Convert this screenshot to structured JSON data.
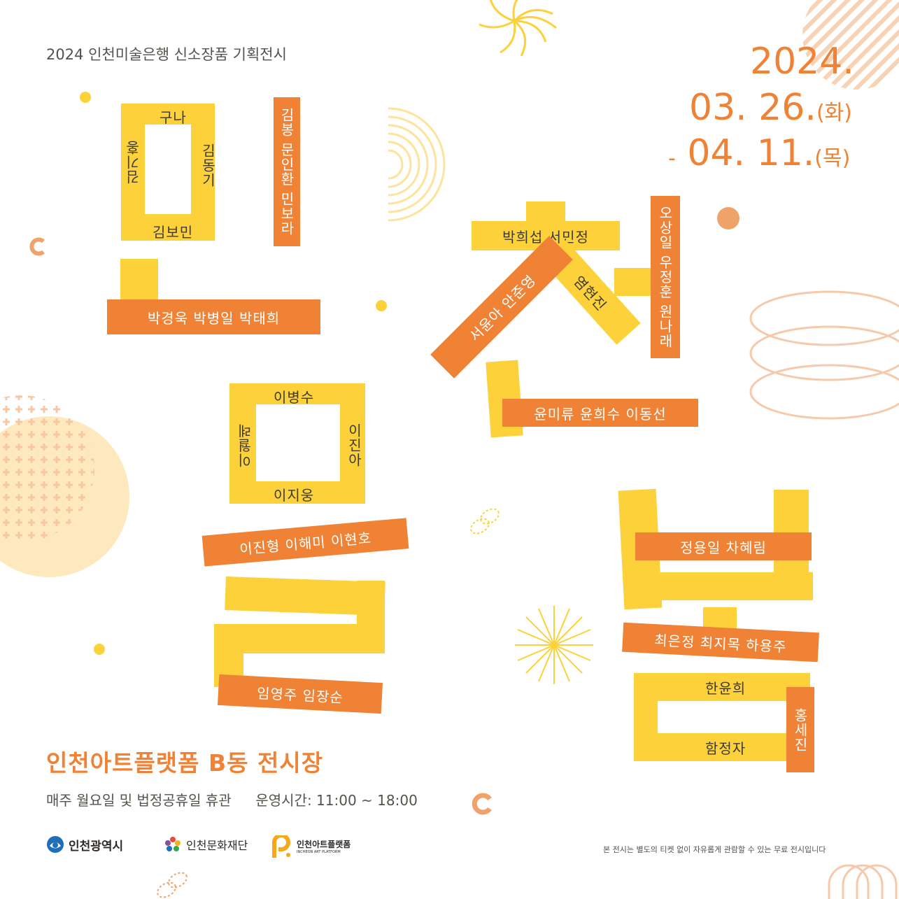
{
  "header": {
    "subtitle": "2024 인천미술은행 신소장품 기획전시",
    "date_year": "2024.",
    "date_start": "03. 26.",
    "date_start_day": "(화)",
    "date_dash": "-",
    "date_end": "04. 11.",
    "date_end_day": "(목)"
  },
  "artists": {
    "g1_top": "구나",
    "g1_left": "김기홍",
    "g1_right": "김동기",
    "g1_bottom": "김보민",
    "v1": "김봉 문인환 민보라",
    "h1": "박경욱 박병일 박태희",
    "g2_top": "이병수",
    "g2_left": "이월례",
    "g2_right": "이진아",
    "g2_bottom": "이지웅",
    "h2": "이진형 이해미 이현호",
    "h3": "임영주 임장순",
    "c_top": "박희섭 서민정",
    "c_diag_left": "서윤아 안준영",
    "c_diag_right": "염현진",
    "v2": "오상일 우정훈 원나래",
    "h4": "윤미류 윤희수 이동선",
    "h5": "정용일 차혜림",
    "h6": "최은정 최지목 하용주",
    "g3_top": "한윤희",
    "g3_bottom": "함정자",
    "v3": "홍세진"
  },
  "footer": {
    "venue": "인천아트플랫폼 B동 전시장",
    "closed": "매주 월요일 및 법정공휴일 휴관",
    "hours": "운영시간: 11:00 ~ 18:00",
    "note": "본 전시는 별도의 티켓 없이 자유롭게 관람할 수 있는 무료 전시입니다",
    "logos": [
      "인천광역시",
      "인천문화재단",
      "인천아트플랫폼"
    ],
    "logo3_sub": "INCHEON ART PLATFORM"
  },
  "colors": {
    "yellow": "#fcd13a",
    "orange": "#ef8234",
    "text": "#3d3a36"
  }
}
